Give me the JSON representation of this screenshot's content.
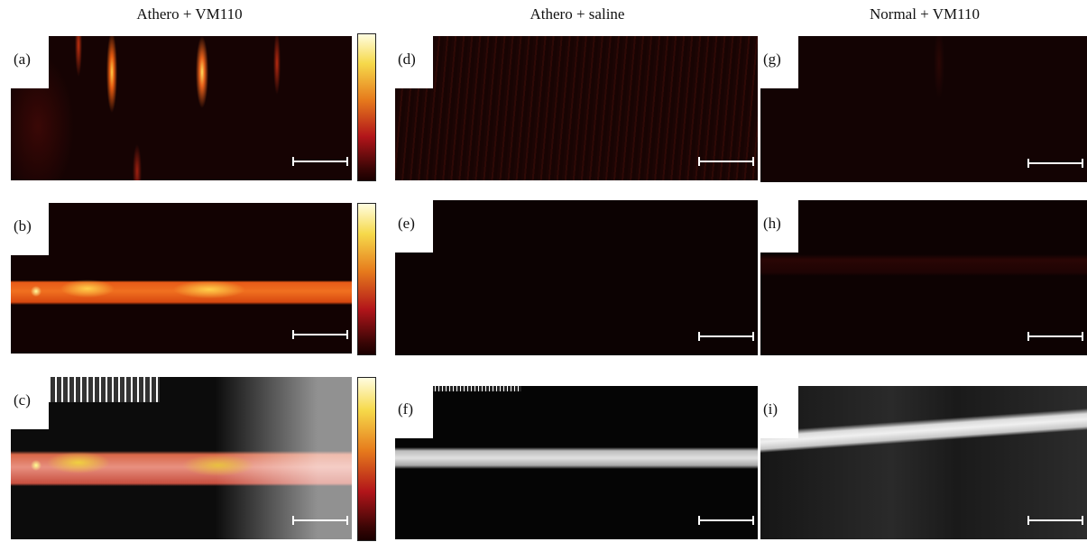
{
  "columns": [
    {
      "title": "Athero + VM110",
      "panels": [
        "(a)",
        "(b)",
        "(c)"
      ]
    },
    {
      "title": "Athero + saline",
      "panels": [
        "(d)",
        "(e)",
        "(f)"
      ]
    },
    {
      "title": "Normal + VM110",
      "panels": [
        "(g)",
        "(h)",
        "(i)"
      ]
    }
  ]
}
